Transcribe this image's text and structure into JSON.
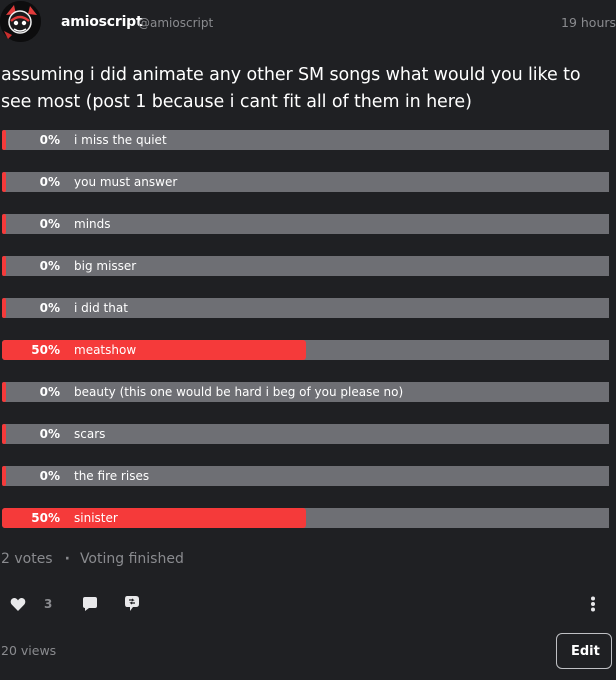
{
  "post": {
    "author": "amioscript",
    "handle": "@amioscript",
    "timestamp": "19 hours",
    "title": "assuming i did animate any other SM songs what would you like to see most (post 1 because i cant fit all of them in here)"
  },
  "poll": {
    "options": [
      {
        "percent": "0%",
        "label": "i miss the quiet",
        "fraction": 0.0
      },
      {
        "percent": "0%",
        "label": "you must answer",
        "fraction": 0.0
      },
      {
        "percent": "0%",
        "label": "minds",
        "fraction": 0.0
      },
      {
        "percent": "0%",
        "label": "big misser",
        "fraction": 0.0
      },
      {
        "percent": "0%",
        "label": "i did that",
        "fraction": 0.0
      },
      {
        "percent": "50%",
        "label": "meatshow",
        "fraction": 0.5
      },
      {
        "percent": "0%",
        "label": "beauty (this one would be hard i beg of you please no)",
        "fraction": 0.0
      },
      {
        "percent": "0%",
        "label": "scars",
        "fraction": 0.0
      },
      {
        "percent": "0%",
        "label": "the fire rises",
        "fraction": 0.0
      },
      {
        "percent": "50%",
        "label": "sinister",
        "fraction": 0.5
      }
    ],
    "votes": "2 votes",
    "status": "Voting finished"
  },
  "actions": {
    "like_count": "3",
    "views": "20 views",
    "edit_label": "Edit"
  },
  "colors": {
    "background": "#1f2023",
    "bar_track": "#6e6f74",
    "bar_fill": "#f53a3a",
    "muted_text": "#8a8b8f"
  },
  "icons": [
    "heart-icon",
    "comment-icon",
    "reblog-icon",
    "more-vertical-icon"
  ]
}
